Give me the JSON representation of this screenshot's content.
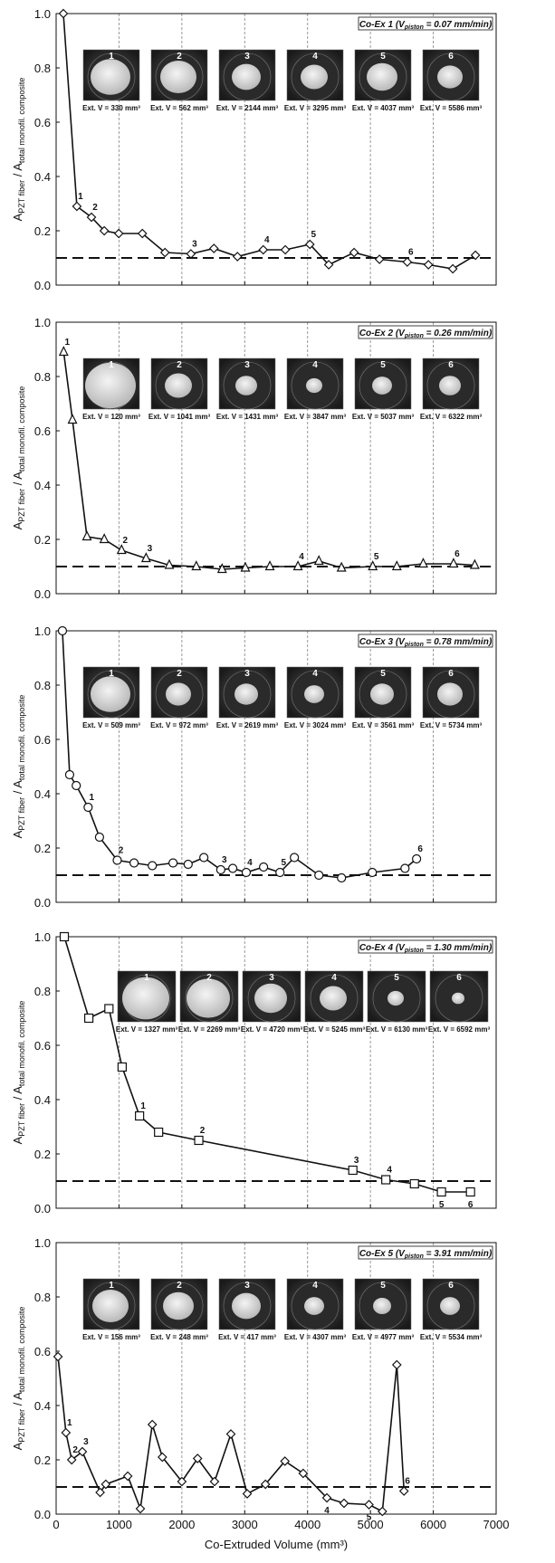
{
  "chart_data": [
    {
      "type": "line",
      "marker": "diamond",
      "color": "#111",
      "title": [
        {
          "text": "Co-Ex 1 (V"
        },
        {
          "text": "piston",
          "sub": true
        },
        {
          "text": " = 0.07 mm/min)"
        }
      ],
      "ylabel": [
        {
          "text": "A"
        },
        {
          "text": "PZT fiber",
          "sub": true
        },
        {
          "text": " / A"
        },
        {
          "text": "total monofil. composite",
          "sub": true
        }
      ],
      "x": [
        115,
        330,
        562,
        766,
        997,
        1372,
        1732,
        2144,
        2510,
        2884,
        3295,
        3646,
        4037,
        4337,
        4740,
        5144,
        5586,
        5922,
        6311,
        6671
      ],
      "values": [
        1.0,
        0.29,
        0.25,
        0.2,
        0.19,
        0.19,
        0.12,
        0.115,
        0.135,
        0.105,
        0.13,
        0.13,
        0.15,
        0.075,
        0.12,
        0.095,
        0.085,
        0.075,
        0.06,
        0.11
      ],
      "point_labels": [
        null,
        "1",
        "2",
        null,
        null,
        null,
        null,
        "3",
        null,
        null,
        "4",
        null,
        "5",
        null,
        null,
        null,
        "6",
        null,
        null,
        null
      ],
      "photos": [
        {
          "label": "1",
          "caption": "Ext. V = 330 mm³"
        },
        {
          "label": "2",
          "caption": "Ext. V = 562 mm³"
        },
        {
          "label": "3",
          "caption": "Ext. V = 2144 mm³"
        },
        {
          "label": "4",
          "caption": "Ext. V = 3295 mm³"
        },
        {
          "label": "5",
          "caption": "Ext. V = 4037 mm³"
        },
        {
          "label": "6",
          "caption": "Ext. V = 5586 mm³"
        }
      ],
      "reference": 0.1,
      "xlim": [
        0,
        7000
      ],
      "xticks": [
        0,
        1000,
        2000,
        3000,
        4000,
        5000,
        6000,
        7000
      ],
      "ylim": [
        0,
        1
      ],
      "yticks": [
        {
          "value": 0,
          "label": "0.0"
        },
        0.2,
        0.4,
        0.6,
        0.8,
        {
          "value": 1,
          "label": "1.0"
        }
      ]
    },
    {
      "type": "line",
      "marker": "triangle",
      "color": "#111",
      "title": [
        {
          "text": "Co-Ex 2 (V"
        },
        {
          "text": "piston",
          "sub": true
        },
        {
          "text": " = 0.26 mm/min)"
        }
      ],
      "ylabel": [
        {
          "text": "A"
        },
        {
          "text": "PZT fiber",
          "sub": true
        },
        {
          "text": " / A"
        },
        {
          "text": "total monofil. composite",
          "sub": true
        }
      ],
      "x": [
        120,
        260,
        490,
        766,
        1041,
        1431,
        1800,
        2230,
        2640,
        3010,
        3400,
        3847,
        4180,
        4540,
        5037,
        5420,
        5840,
        6322,
        6660
      ],
      "values": [
        0.89,
        0.64,
        0.21,
        0.2,
        0.16,
        0.13,
        0.105,
        0.1,
        0.09,
        0.095,
        0.1,
        0.1,
        0.12,
        0.095,
        0.1,
        0.1,
        0.11,
        0.11,
        0.105
      ],
      "point_labels": [
        "1",
        null,
        null,
        null,
        "2",
        "3",
        null,
        null,
        null,
        null,
        null,
        "4",
        null,
        null,
        "5",
        null,
        null,
        "6",
        null
      ],
      "photos": [
        {
          "label": "1",
          "caption": "Ext. V = 120 mm³"
        },
        {
          "label": "2",
          "caption": "Ext. V = 1041 mm³"
        },
        {
          "label": "3",
          "caption": "Ext. V = 1431 mm³"
        },
        {
          "label": "4",
          "caption": "Ext. V = 3847 mm³"
        },
        {
          "label": "5",
          "caption": "Ext. V = 5037 mm³"
        },
        {
          "label": "6",
          "caption": "Ext. V = 6322 mm³"
        }
      ],
      "reference": 0.1,
      "xlim": [
        0,
        7000
      ],
      "xticks": [
        0,
        1000,
        2000,
        3000,
        4000,
        5000,
        6000,
        7000
      ],
      "ylim": [
        0,
        1
      ],
      "yticks": [
        {
          "value": 0,
          "label": "0.0"
        },
        0.2,
        0.4,
        0.6,
        0.8,
        {
          "value": 1,
          "label": "1.0"
        }
      ]
    },
    {
      "type": "line",
      "marker": "circle",
      "color": "#111",
      "title": [
        {
          "text": "Co-Ex 3 (V"
        },
        {
          "text": "piston",
          "sub": true
        },
        {
          "text": " = 0.78 mm/min)"
        }
      ],
      "ylabel": [
        {
          "text": "A"
        },
        {
          "text": "PZT fiber",
          "sub": true
        },
        {
          "text": " / A"
        },
        {
          "text": "total monofil. composite",
          "sub": true
        }
      ],
      "x": [
        100,
        215,
        320,
        509,
        690,
        972,
        1240,
        1530,
        1860,
        2100,
        2350,
        2619,
        2810,
        3024,
        3300,
        3561,
        3790,
        4180,
        4540,
        5030,
        5550,
        5734
      ],
      "values": [
        1.0,
        0.47,
        0.43,
        0.35,
        0.24,
        0.155,
        0.145,
        0.135,
        0.145,
        0.14,
        0.165,
        0.12,
        0.125,
        0.11,
        0.13,
        0.11,
        0.165,
        0.1,
        0.09,
        0.11,
        0.125,
        0.16
      ],
      "point_labels": [
        null,
        null,
        null,
        "1",
        null,
        "2",
        null,
        null,
        null,
        null,
        null,
        "3",
        null,
        "4",
        null,
        "5",
        null,
        null,
        null,
        null,
        null,
        "6"
      ],
      "photos": [
        {
          "label": "1",
          "caption": "Ext. V = 509 mm³"
        },
        {
          "label": "2",
          "caption": "Ext. V = 972 mm³"
        },
        {
          "label": "3",
          "caption": "Ext. V = 2619 mm³"
        },
        {
          "label": "4",
          "caption": "Ext. V = 3024 mm³"
        },
        {
          "label": "5",
          "caption": "Ext. V = 3561 mm³"
        },
        {
          "label": "6",
          "caption": "Ext. V = 5734 mm³"
        }
      ],
      "reference": 0.1,
      "xlim": [
        0,
        7000
      ],
      "xticks": [
        0,
        1000,
        2000,
        3000,
        4000,
        5000,
        6000,
        7000
      ],
      "ylim": [
        0,
        1
      ],
      "yticks": [
        {
          "value": 0,
          "label": "0.0"
        },
        0.2,
        0.4,
        0.6,
        0.8,
        {
          "value": 1,
          "label": "1.0"
        }
      ]
    },
    {
      "type": "line",
      "marker": "square",
      "color": "#111",
      "title": [
        {
          "text": "Co-Ex 4 (V"
        },
        {
          "text": "piston",
          "sub": true
        },
        {
          "text": " = 1.30 mm/min)"
        }
      ],
      "ylabel": [
        {
          "text": "A"
        },
        {
          "text": "PZT fiber",
          "sub": true
        },
        {
          "text": " / A"
        },
        {
          "text": "total monofil. composite",
          "sub": true
        }
      ],
      "x": [
        130,
        520,
        840,
        1050,
        1327,
        1630,
        2269,
        4720,
        5245,
        5700,
        6130,
        6592
      ],
      "values": [
        1.0,
        0.7,
        0.735,
        0.52,
        0.34,
        0.28,
        0.25,
        0.14,
        0.105,
        0.09,
        0.06,
        0.06
      ],
      "point_labels": [
        null,
        null,
        null,
        null,
        "1",
        null,
        "2",
        "3",
        "4",
        null,
        "5",
        "6"
      ],
      "photos": [
        {
          "label": "1",
          "caption": "Ext. V = 1327 mm³"
        },
        {
          "label": "2",
          "caption": "Ext. V = 2269 mm³"
        },
        {
          "label": "3",
          "caption": "Ext. V = 4720 mm³"
        },
        {
          "label": "4",
          "caption": "Ext. V = 5245 mm³"
        },
        {
          "label": "5",
          "caption": "Ext. V = 6130 mm³"
        },
        {
          "label": "6",
          "caption": "Ext. V = 6592 mm³"
        }
      ],
      "reference": 0.1,
      "xlim": [
        0,
        7000
      ],
      "xticks": [
        0,
        1000,
        2000,
        3000,
        4000,
        5000,
        6000,
        7000
      ],
      "ylim": [
        0,
        1
      ],
      "yticks": [
        {
          "value": 0,
          "label": "0.0"
        },
        0.2,
        0.4,
        0.6,
        0.8,
        {
          "value": 1,
          "label": "1.0"
        }
      ]
    },
    {
      "type": "line",
      "marker": "diamond",
      "color": "#111",
      "title": [
        {
          "text": "Co-Ex 5 (V"
        },
        {
          "text": "piston",
          "sub": true
        },
        {
          "text": " = 3.91 mm/min)"
        }
      ],
      "ylabel": [
        {
          "text": "A"
        },
        {
          "text": "PZT fiber",
          "sub": true
        },
        {
          "text": " / A"
        },
        {
          "text": "total monofil. composite",
          "sub": true
        }
      ],
      "xlabel": "Co-Extruded Volume (mm³)",
      "x": [
        30,
        156,
        248,
        417,
        700,
        790,
        1140,
        1340,
        1530,
        1690,
        2000,
        2250,
        2520,
        2780,
        3040,
        3330,
        3640,
        3930,
        4307,
        4580,
        4977,
        5190,
        5420,
        5534
      ],
      "values": [
        0.58,
        0.3,
        0.2,
        0.23,
        0.08,
        0.11,
        0.14,
        0.02,
        0.33,
        0.21,
        0.12,
        0.205,
        0.12,
        0.295,
        0.075,
        0.11,
        0.195,
        0.15,
        0.06,
        0.04,
        0.035,
        0.01,
        0.55,
        0.085
      ],
      "point_labels": [
        null,
        "1",
        "2",
        "3",
        null,
        null,
        null,
        null,
        null,
        null,
        null,
        null,
        null,
        null,
        null,
        null,
        null,
        null,
        "4",
        null,
        "5",
        null,
        null,
        "6"
      ],
      "photos": [
        {
          "label": "1",
          "caption": "Ext. V = 156 mm³"
        },
        {
          "label": "2",
          "caption": "Ext. V = 248 mm³"
        },
        {
          "label": "3",
          "caption": "Ext. V = 417 mm³"
        },
        {
          "label": "4",
          "caption": "Ext. V = 4307 mm³"
        },
        {
          "label": "5",
          "caption": "Ext. V = 4977 mm³"
        },
        {
          "label": "6",
          "caption": "Ext. V = 5534 mm³"
        }
      ],
      "reference": 0.1,
      "xlim": [
        0,
        7000
      ],
      "xticks": [
        0,
        1000,
        2000,
        3000,
        4000,
        5000,
        6000,
        7000
      ],
      "ylim": [
        0,
        1
      ],
      "yticks": [
        {
          "value": 0,
          "label": "0.0"
        },
        0.2,
        0.4,
        0.6,
        0.8,
        {
          "value": 1,
          "label": "1.0"
        }
      ]
    }
  ]
}
